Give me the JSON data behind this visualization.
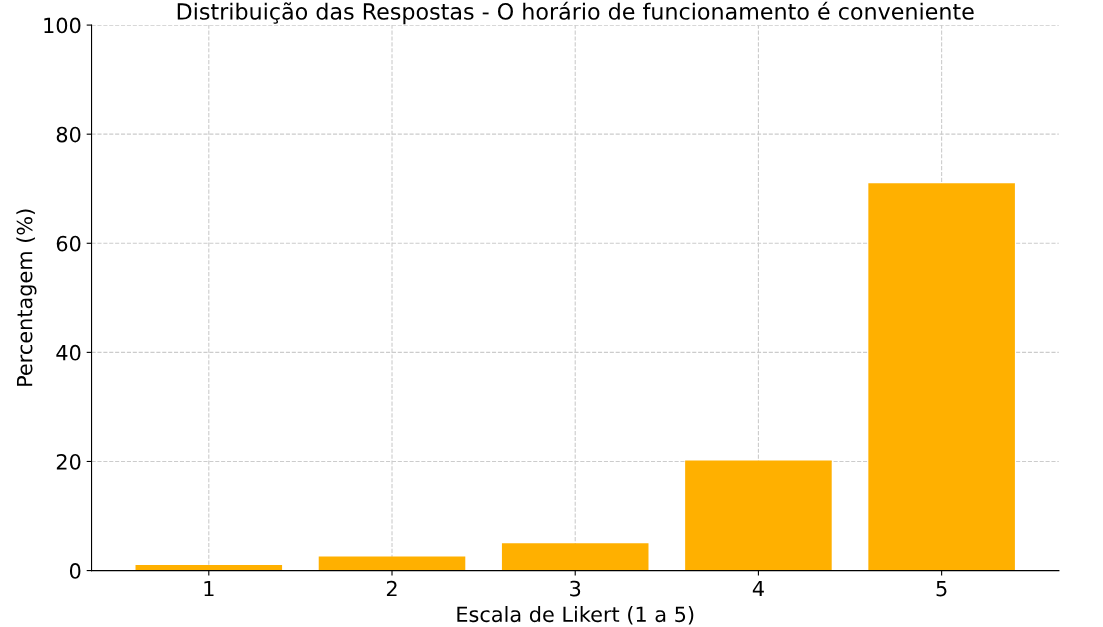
{
  "chart_data": {
    "type": "bar",
    "title": "Distribuição das Respostas - O horário de funcionamento é conveniente",
    "xlabel": "Escala de Likert (1 a 5)",
    "ylabel": "Percentagem (%)",
    "categories": [
      "1",
      "2",
      "3",
      "4",
      "5"
    ],
    "values": [
      1,
      2.6,
      5,
      20.2,
      71
    ],
    "color": "#ffb000",
    "ylim": [
      0,
      100
    ],
    "yticks": [
      0,
      20,
      40,
      60,
      80,
      100
    ],
    "grid": true
  }
}
